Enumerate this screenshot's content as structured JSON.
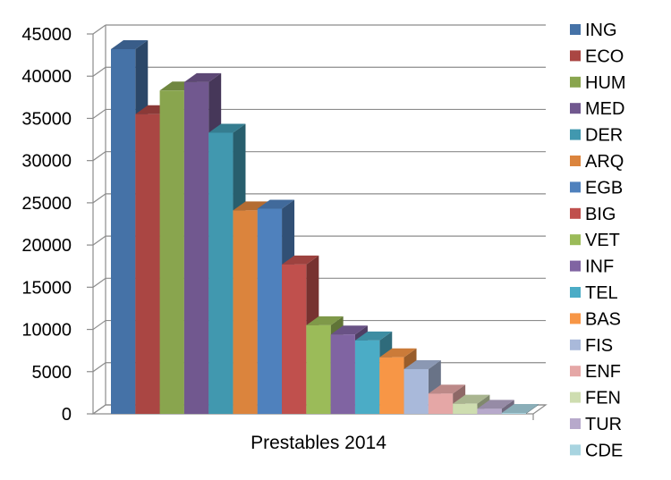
{
  "chart_data": {
    "type": "bar",
    "categories": [
      "Prestables 2014"
    ],
    "series": [
      {
        "name": "ING",
        "values": [
          43200
        ],
        "color": "#4572A7"
      },
      {
        "name": "ECO",
        "values": [
          35500
        ],
        "color": "#AA4643"
      },
      {
        "name": "HUM",
        "values": [
          38300
        ],
        "color": "#89A54E"
      },
      {
        "name": "MED",
        "values": [
          39300
        ],
        "color": "#71588F"
      },
      {
        "name": "DER",
        "values": [
          33300
        ],
        "color": "#4198AF"
      },
      {
        "name": "ARQ",
        "values": [
          24100
        ],
        "color": "#DB843D"
      },
      {
        "name": "EGB",
        "values": [
          24300
        ],
        "color": "#4F81BD"
      },
      {
        "name": "BIG",
        "values": [
          17700
        ],
        "color": "#C0504D"
      },
      {
        "name": "VET",
        "values": [
          10500
        ],
        "color": "#9BBB59"
      },
      {
        "name": "INF",
        "values": [
          9400
        ],
        "color": "#8064A2"
      },
      {
        "name": "TEL",
        "values": [
          8700
        ],
        "color": "#4BACC6"
      },
      {
        "name": "BAS",
        "values": [
          6700
        ],
        "color": "#F79646"
      },
      {
        "name": "FIS",
        "values": [
          5300
        ],
        "color": "#A9B9DA"
      },
      {
        "name": "ENF",
        "values": [
          2400
        ],
        "color": "#E5A7A6"
      },
      {
        "name": "FEN",
        "values": [
          1200
        ],
        "color": "#CEDDB0"
      },
      {
        "name": "TUR",
        "values": [
          600
        ],
        "color": "#B7A9CB"
      },
      {
        "name": "CDE",
        "values": [
          100
        ],
        "color": "#A8D4E0"
      }
    ],
    "ylim": [
      0,
      45000
    ],
    "yticks": [
      0,
      5000,
      10000,
      15000,
      20000,
      25000,
      30000,
      35000,
      40000,
      45000
    ],
    "xlabel": "",
    "ylabel": "",
    "title": "",
    "grid": true,
    "legend_position": "right",
    "style": "3d-clustered-column"
  }
}
